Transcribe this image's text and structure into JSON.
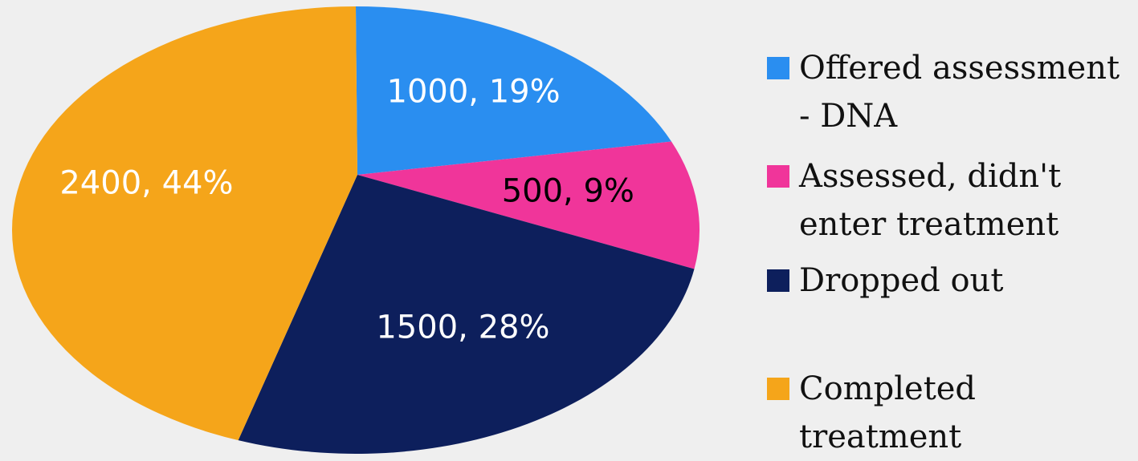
{
  "chart_data": {
    "type": "pie",
    "categories": [
      "Offered assessment - DNA",
      "Assessed, didn't enter treatment",
      "Dropped out",
      "Completed treatment"
    ],
    "values": [
      1000,
      500,
      1500,
      2400
    ],
    "value_labels": [
      "1000, 19%",
      "500, 9%",
      "1500, 28%",
      "2400, 44%"
    ],
    "colors": [
      "#2a8ef0",
      "#f0359a",
      "#0d1f5c",
      "#f5a51a"
    ],
    "label_colors": [
      "#ffffff",
      "#000000",
      "#ffffff",
      "#ffffff"
    ],
    "legend": "right"
  }
}
